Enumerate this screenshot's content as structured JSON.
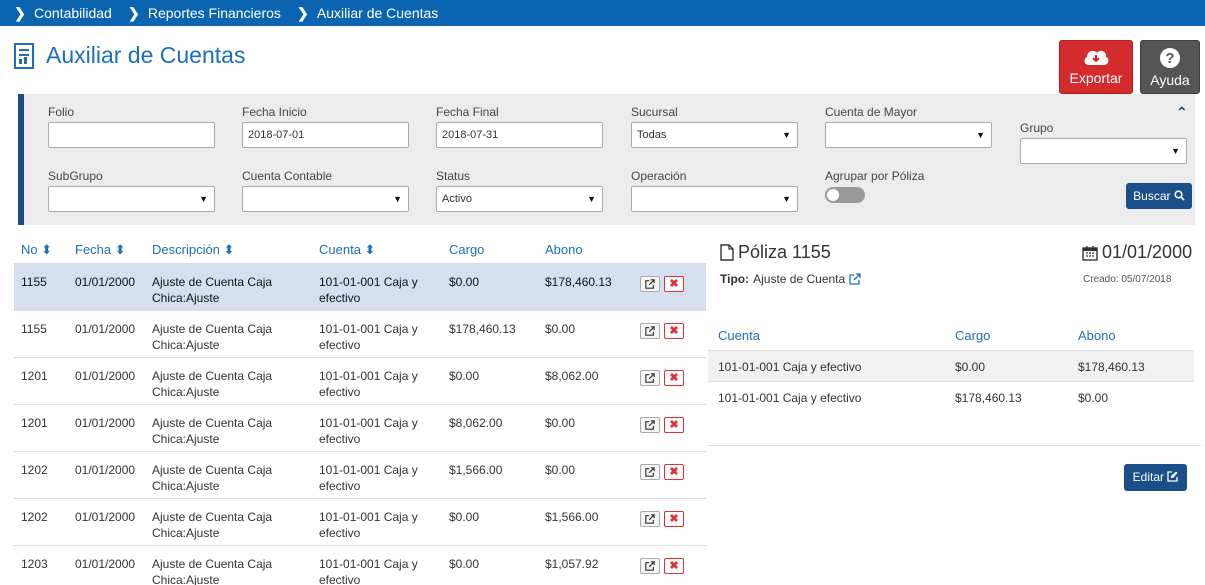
{
  "breadcrumb": [
    "Contabilidad",
    "Reportes Financieros",
    "Auxiliar de Cuentas"
  ],
  "page_title": "Auxiliar de Cuentas",
  "buttons": {
    "export": "Exportar",
    "help": "Ayuda",
    "search": "Buscar",
    "edit": "Editar"
  },
  "filters": {
    "folio": {
      "label": "Folio",
      "value": ""
    },
    "fecha_inicio": {
      "label": "Fecha Inicio",
      "value": "2018-07-01"
    },
    "fecha_final": {
      "label": "Fecha Final",
      "value": "2018-07-31"
    },
    "sucursal": {
      "label": "Sucursal",
      "value": "Todas"
    },
    "cuenta_mayor": {
      "label": "Cuenta de Mayor",
      "value": ""
    },
    "grupo": {
      "label": "Grupo",
      "value": ""
    },
    "subgrupo": {
      "label": "SubGrupo",
      "value": ""
    },
    "cuenta_contable": {
      "label": "Cuenta Contable",
      "value": ""
    },
    "status": {
      "label": "Status",
      "value": "Activo"
    },
    "operacion": {
      "label": "Operación",
      "value": ""
    },
    "agrupar": {
      "label": "Agrupar por Póliza",
      "on": false
    }
  },
  "table": {
    "headers": {
      "no": "No",
      "fecha": "Fecha",
      "descripcion": "Descripción",
      "cuenta": "Cuenta",
      "cargo": "Cargo",
      "abono": "Abono"
    },
    "rows": [
      {
        "no": "1155",
        "fecha": "01/01/2000",
        "descripcion": "Ajuste de Cuenta Caja Chica:Ajuste",
        "cuenta": "101-01-001 Caja y efectivo",
        "cargo": "$0.00",
        "abono": "$178,460.13",
        "selected": true
      },
      {
        "no": "1155",
        "fecha": "01/01/2000",
        "descripcion": "Ajuste de Cuenta Caja Chica:Ajuste",
        "cuenta": "101-01-001 Caja y efectivo",
        "cargo": "$178,460.13",
        "abono": "$0.00"
      },
      {
        "no": "1201",
        "fecha": "01/01/2000",
        "descripcion": "Ajuste de Cuenta Caja Chica:Ajuste",
        "cuenta": "101-01-001 Caja y efectivo",
        "cargo": "$0.00",
        "abono": "$8,062.00"
      },
      {
        "no": "1201",
        "fecha": "01/01/2000",
        "descripcion": "Ajuste de Cuenta Caja Chica:Ajuste",
        "cuenta": "101-01-001 Caja y efectivo",
        "cargo": "$8,062.00",
        "abono": "$0.00"
      },
      {
        "no": "1202",
        "fecha": "01/01/2000",
        "descripcion": "Ajuste de Cuenta Caja Chica:Ajuste",
        "cuenta": "101-01-001 Caja y efectivo",
        "cargo": "$1,566.00",
        "abono": "$0.00"
      },
      {
        "no": "1202",
        "fecha": "01/01/2000",
        "descripcion": "Ajuste de Cuenta Caja Chica:Ajuste",
        "cuenta": "101-01-001 Caja y efectivo",
        "cargo": "$0.00",
        "abono": "$1,566.00"
      },
      {
        "no": "1203",
        "fecha": "01/01/2000",
        "descripcion": "Ajuste de Cuenta Caja Chica:Ajuste",
        "cuenta": "101-01-001 Caja y efectivo",
        "cargo": "$0.00",
        "abono": "$1,057.92"
      }
    ]
  },
  "poliza": {
    "title": "Póliza 1155",
    "date": "01/01/2000",
    "tipo_label": "Tipo:",
    "tipo_value": "Ajuste de Cuenta",
    "creado": "Creado: 05/07/2018",
    "headers": {
      "cuenta": "Cuenta",
      "cargo": "Cargo",
      "abono": "Abono"
    },
    "rows": [
      {
        "cuenta": "101-01-001 Caja y efectivo",
        "cargo": "$0.00",
        "abono": "$178,460.13"
      },
      {
        "cuenta": "101-01-001 Caja y efectivo",
        "cargo": "$178,460.13",
        "abono": "$0.00"
      }
    ]
  },
  "icons": {
    "sort": "sort-icon",
    "external": "external-link-icon",
    "delete": "delete-icon",
    "file": "file-icon",
    "calendar": "calendar-icon",
    "cloud": "cloud-download-icon",
    "help": "question-icon",
    "search": "search-icon",
    "edit": "edit-icon"
  },
  "colors": {
    "brand": "#0a64b0",
    "navy": "#1b4f8a",
    "danger": "#d42c2c",
    "selected_row": "#d6dff0"
  }
}
